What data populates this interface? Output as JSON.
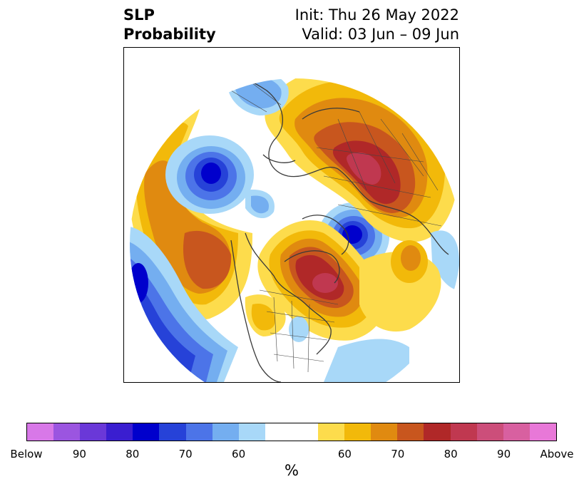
{
  "title": {
    "variable": "SLP",
    "product": "Probability",
    "init": "Init: Thu 26 May 2022",
    "valid": "Valid: 03 Jun – 09 Jun"
  },
  "colorbar": {
    "colors": [
      "#d878e8",
      "#9b55e0",
      "#6a38d8",
      "#3a1ed0",
      "#0000cc",
      "#2642d8",
      "#4c74e8",
      "#74aef0",
      "#a8d8f8",
      "#ffffff",
      "#ffffff",
      "#fddc4c",
      "#f2b90a",
      "#e08a10",
      "#c8561e",
      "#b02828",
      "#c03850",
      "#cc4e7a",
      "#d860a0",
      "#e878d8"
    ],
    "tick_labels": [
      "Below",
      "90",
      "80",
      "70",
      "60",
      "",
      "60",
      "70",
      "80",
      "90",
      "Above"
    ],
    "unit": "%"
  },
  "map": {
    "projection": "north-polar-stereographic",
    "features": [
      {
        "name": "high-pressure-eurasia",
        "category": "Above",
        "peak": "80-85"
      },
      {
        "name": "high-pressure-hudson-bay",
        "category": "Above",
        "peak": "80-85"
      },
      {
        "name": "low-pressure-greenland-sea",
        "category": "Below",
        "peak": "80-85"
      },
      {
        "name": "low-pressure-east-siberia",
        "category": "Below",
        "peak": "80"
      },
      {
        "name": "low-pressure-north-pacific",
        "category": "Below",
        "peak": "75-80"
      }
    ]
  }
}
